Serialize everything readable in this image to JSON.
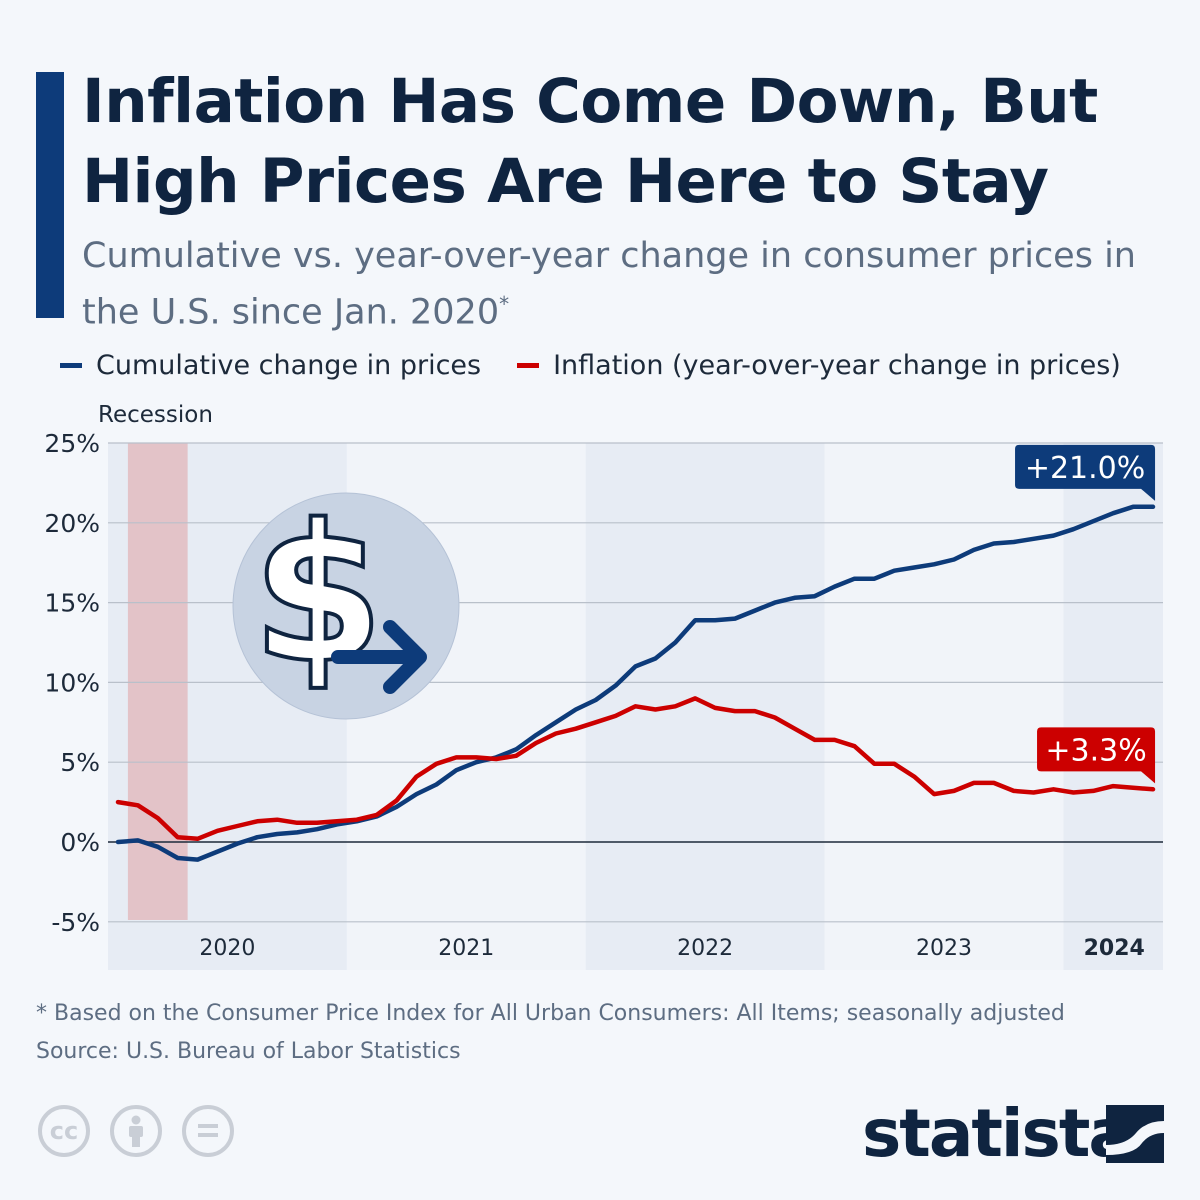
{
  "header": {
    "title": "Inflation Has Come Down, But High Prices Are Here to Stay",
    "subtitle": "Cumulative vs. year-over-year change in consumer prices in the U.S. since Jan. 2020",
    "subtitle_mark": "*"
  },
  "colors": {
    "accent": "#0d3b7a",
    "cumulative": "#0d3b7a",
    "inflation": "#cc0000",
    "recession": "#e3c3c8"
  },
  "chart_data": {
    "type": "line",
    "title": "",
    "xlabel": "",
    "ylabel": "",
    "ylim": [
      -5,
      25
    ],
    "yticks": [
      "25%",
      "20%",
      "15%",
      "10%",
      "5%",
      "0%",
      "-5%"
    ],
    "ytick_values": [
      25,
      20,
      15,
      10,
      5,
      0,
      -5
    ],
    "x_start": "2020-01",
    "x_end": "2024-05",
    "xtick_labels": [
      "2020",
      "2021",
      "2022",
      "2023",
      "2024"
    ],
    "grid": true,
    "legend_placement": "top",
    "recession_label": "Recession",
    "recession": [
      "2020-02",
      "2020-04"
    ],
    "series": [
      {
        "name": "Cumulative change in prices",
        "color": "#0d3b7a",
        "values": [
          0.0,
          0.1,
          -0.3,
          -1.0,
          -1.1,
          -0.6,
          -0.1,
          0.3,
          0.5,
          0.6,
          0.8,
          1.1,
          1.3,
          1.6,
          2.2,
          3.0,
          3.6,
          4.5,
          5.0,
          5.3,
          5.8,
          6.7,
          7.5,
          8.3,
          8.9,
          9.8,
          11.0,
          11.5,
          12.5,
          13.9,
          13.9,
          14.0,
          14.5,
          15.0,
          15.3,
          15.4,
          16.0,
          16.5,
          16.5,
          17.0,
          17.2,
          17.4,
          17.7,
          18.3,
          18.7,
          18.8,
          19.0,
          19.2,
          19.6,
          20.1,
          20.6,
          21.0,
          21.0
        ],
        "end_label": "+21.0%"
      },
      {
        "name": "Inflation (year-over-year change in prices)",
        "color": "#cc0000",
        "values": [
          2.5,
          2.3,
          1.5,
          0.3,
          0.2,
          0.7,
          1.0,
          1.3,
          1.4,
          1.2,
          1.2,
          1.3,
          1.4,
          1.7,
          2.6,
          4.1,
          4.9,
          5.3,
          5.3,
          5.2,
          5.4,
          6.2,
          6.8,
          7.1,
          7.5,
          7.9,
          8.5,
          8.3,
          8.5,
          9.0,
          8.4,
          8.2,
          8.2,
          7.8,
          7.1,
          6.4,
          6.4,
          6.0,
          4.9,
          4.9,
          4.1,
          3.0,
          3.2,
          3.7,
          3.7,
          3.2,
          3.1,
          3.3,
          3.1,
          3.2,
          3.5,
          3.4,
          3.3
        ],
        "end_label": "+3.3%"
      }
    ]
  },
  "footer": {
    "note": "* Based on the Consumer Price Index for All Urban Consumers: All Items; seasonally adjusted",
    "source": "Source: U.S. Bureau of Labor Statistics",
    "license_icons": [
      "cc-icon",
      "attribution-icon",
      "no-derivatives-icon"
    ],
    "cc_label": "cc",
    "logo": "statista"
  }
}
